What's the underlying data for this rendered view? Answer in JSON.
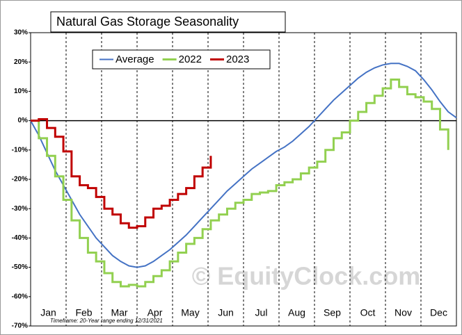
{
  "chart_data": {
    "type": "line",
    "title": "Natural Gas Storage Seasonality",
    "footnote": "Timeframe: 20-Year range ending 12/31/2021",
    "watermark": "© EquityClock.com",
    "categories": [
      "Jan",
      "Feb",
      "Mar",
      "Apr",
      "May",
      "Jun",
      "Jul",
      "Aug",
      "Sep",
      "Oct",
      "Nov",
      "Dec"
    ],
    "xlim": [
      0,
      52
    ],
    "ylim": [
      -70,
      30
    ],
    "yticks": [
      {
        "value": 30,
        "label": "30%"
      },
      {
        "value": 20,
        "label": "20%"
      },
      {
        "value": 10,
        "label": "10%"
      },
      {
        "value": 0,
        "label": "0%"
      },
      {
        "value": -10,
        "label": "-10%"
      },
      {
        "value": -20,
        "label": "-20%"
      },
      {
        "value": -30,
        "label": "-30%"
      },
      {
        "value": -40,
        "label": "-40%"
      },
      {
        "value": -50,
        "label": "-50%"
      },
      {
        "value": -60,
        "label": "-60%"
      },
      {
        "value": -70,
        "label": "-70%"
      }
    ],
    "series": [
      {
        "name": "Average",
        "color": "#4472c4",
        "step": false,
        "x": [
          0,
          1,
          2,
          3,
          4,
          5,
          6,
          7,
          8,
          9,
          10,
          11,
          12,
          13,
          14,
          15,
          16,
          17,
          18,
          19,
          20,
          21,
          22,
          23,
          24,
          25,
          26,
          27,
          28,
          29,
          30,
          31,
          32,
          33,
          34,
          35,
          36,
          37,
          38,
          39,
          40,
          41,
          42,
          43,
          44,
          45,
          46,
          47,
          48,
          49,
          50,
          51,
          52
        ],
        "values": [
          0,
          -5,
          -11,
          -17,
          -22,
          -27,
          -32,
          -36,
          -40,
          -43,
          -46,
          -48,
          -49.5,
          -50,
          -49.5,
          -48,
          -46,
          -44,
          -41.5,
          -39,
          -36,
          -33,
          -30,
          -27,
          -24,
          -21.5,
          -19,
          -16.5,
          -14.5,
          -12.5,
          -10.5,
          -9,
          -7,
          -4.5,
          -2,
          1,
          4,
          7,
          9.5,
          12,
          14.5,
          16.5,
          18,
          19,
          19.5,
          19.5,
          18.5,
          17,
          14,
          10.5,
          6.5,
          3,
          1
        ]
      },
      {
        "name": "2022",
        "color": "#92d050",
        "step": true,
        "x": [
          0,
          1,
          2,
          3,
          4,
          5,
          6,
          7,
          8,
          9,
          10,
          11,
          12,
          13,
          14,
          15,
          16,
          17,
          18,
          19,
          20,
          21,
          22,
          23,
          24,
          25,
          26,
          27,
          28,
          29,
          30,
          31,
          32,
          33,
          34,
          35,
          36,
          37,
          38,
          39,
          40,
          41,
          42,
          43,
          44,
          45,
          46,
          47,
          48,
          49,
          50,
          51
        ],
        "values": [
          0,
          -6,
          -12,
          -19,
          -27,
          -34,
          -40,
          -45,
          -48,
          -52,
          -55,
          -56.5,
          -56,
          -56.5,
          -55,
          -53,
          -51,
          -48,
          -45,
          -42,
          -40,
          -37,
          -34,
          -32,
          -30,
          -28,
          -27,
          -25,
          -24.5,
          -24,
          -22,
          -21,
          -20,
          -18,
          -16,
          -14,
          -10,
          -6,
          -4,
          0,
          3,
          6,
          8.5,
          11,
          14,
          11.5,
          9,
          8,
          6.5,
          4,
          -3,
          -10
        ]
      },
      {
        "name": "2023",
        "color": "#c00000",
        "step": true,
        "x": [
          0,
          1,
          2,
          3,
          4,
          5,
          6,
          7,
          8,
          9,
          10,
          11,
          12,
          13,
          14,
          15,
          16,
          17,
          18,
          19,
          20,
          21,
          22
        ],
        "values": [
          0,
          0.5,
          -2.5,
          -5.5,
          -10.5,
          -19,
          -22,
          -23,
          -26,
          -30,
          -32,
          -35,
          -36.5,
          -36,
          -33,
          -30,
          -29,
          -27,
          -25,
          -23,
          -19,
          -16,
          -12
        ]
      }
    ]
  }
}
